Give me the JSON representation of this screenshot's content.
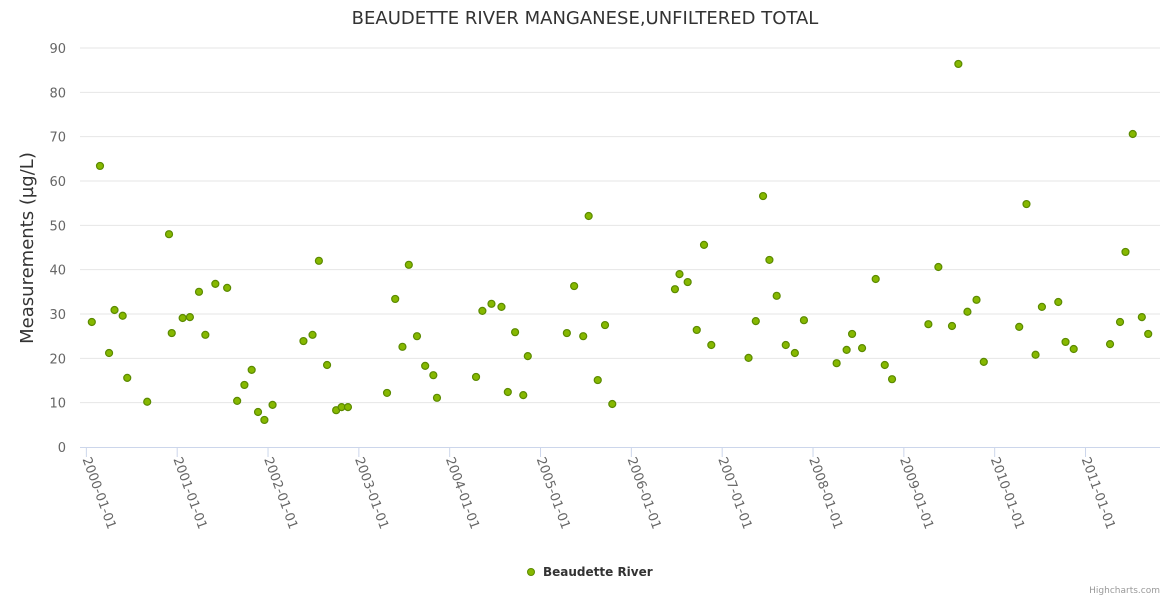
{
  "chart_data": {
    "type": "scatter",
    "title": "BEAUDETTE RIVER MANGANESE,UNFILTERED TOTAL",
    "xlabel": "",
    "ylabel": "Measurements (µg/L)",
    "ylim": [
      0,
      90
    ],
    "xlim": [
      1999.93,
      2011.82
    ],
    "yticks": [
      0,
      10,
      20,
      30,
      40,
      50,
      60,
      70,
      80,
      90
    ],
    "xticks": [
      {
        "value": 2000,
        "label": "2000-01-01"
      },
      {
        "value": 2001,
        "label": "2001-01-01"
      },
      {
        "value": 2002,
        "label": "2002-01-01"
      },
      {
        "value": 2003,
        "label": "2003-01-01"
      },
      {
        "value": 2004,
        "label": "2004-01-01"
      },
      {
        "value": 2005,
        "label": "2005-01-01"
      },
      {
        "value": 2006,
        "label": "2006-01-01"
      },
      {
        "value": 2007,
        "label": "2007-01-01"
      },
      {
        "value": 2008,
        "label": "2008-01-01"
      },
      {
        "value": 2009,
        "label": "2009-01-01"
      },
      {
        "value": 2010,
        "label": "2010-01-01"
      },
      {
        "value": 2011,
        "label": "2011-01-01"
      }
    ],
    "grid": true,
    "legend_position": "bottom-center",
    "series": [
      {
        "name": "Beaudette River",
        "color": "#86b800",
        "stroke": "#5b8a00",
        "x_unit": "decimal year",
        "points": [
          [
            2000.06,
            28.2
          ],
          [
            2000.15,
            63.4
          ],
          [
            2000.25,
            21.2
          ],
          [
            2000.31,
            30.9
          ],
          [
            2000.4,
            29.6
          ],
          [
            2000.45,
            15.6
          ],
          [
            2000.67,
            10.2
          ],
          [
            2000.91,
            48.0
          ],
          [
            2000.94,
            25.7
          ],
          [
            2001.06,
            29.1
          ],
          [
            2001.14,
            29.3
          ],
          [
            2001.24,
            35.0
          ],
          [
            2001.31,
            25.3
          ],
          [
            2001.42,
            36.8
          ],
          [
            2001.55,
            35.9
          ],
          [
            2001.66,
            10.4
          ],
          [
            2001.74,
            14.0
          ],
          [
            2001.82,
            17.4
          ],
          [
            2001.89,
            7.9
          ],
          [
            2001.96,
            6.1
          ],
          [
            2002.05,
            9.5
          ],
          [
            2002.39,
            23.9
          ],
          [
            2002.49,
            25.3
          ],
          [
            2002.56,
            42.0
          ],
          [
            2002.65,
            18.5
          ],
          [
            2002.75,
            8.3
          ],
          [
            2002.81,
            9.0
          ],
          [
            2002.88,
            9.0
          ],
          [
            2003.31,
            12.2
          ],
          [
            2003.4,
            33.4
          ],
          [
            2003.48,
            22.6
          ],
          [
            2003.55,
            41.1
          ],
          [
            2003.64,
            25.0
          ],
          [
            2003.73,
            18.3
          ],
          [
            2003.82,
            16.2
          ],
          [
            2003.86,
            11.1
          ],
          [
            2004.29,
            15.8
          ],
          [
            2004.36,
            30.7
          ],
          [
            2004.46,
            32.3
          ],
          [
            2004.57,
            31.6
          ],
          [
            2004.64,
            12.4
          ],
          [
            2004.72,
            25.9
          ],
          [
            2004.81,
            11.7
          ],
          [
            2004.86,
            20.5
          ],
          [
            2005.29,
            25.7
          ],
          [
            2005.37,
            36.3
          ],
          [
            2005.47,
            25.0
          ],
          [
            2005.53,
            52.1
          ],
          [
            2005.63,
            15.1
          ],
          [
            2005.71,
            27.5
          ],
          [
            2005.79,
            9.7
          ],
          [
            2006.48,
            35.6
          ],
          [
            2006.53,
            39.0
          ],
          [
            2006.62,
            37.2
          ],
          [
            2006.72,
            26.4
          ],
          [
            2006.8,
            45.6
          ],
          [
            2006.88,
            23.0
          ],
          [
            2007.29,
            20.1
          ],
          [
            2007.37,
            28.4
          ],
          [
            2007.45,
            56.6
          ],
          [
            2007.52,
            42.2
          ],
          [
            2007.6,
            34.1
          ],
          [
            2007.7,
            23.0
          ],
          [
            2007.8,
            21.2
          ],
          [
            2007.9,
            28.6
          ],
          [
            2008.26,
            18.9
          ],
          [
            2008.37,
            21.9
          ],
          [
            2008.43,
            25.5
          ],
          [
            2008.54,
            22.3
          ],
          [
            2008.69,
            37.9
          ],
          [
            2008.79,
            18.5
          ],
          [
            2008.87,
            15.3
          ],
          [
            2009.27,
            27.7
          ],
          [
            2009.38,
            40.6
          ],
          [
            2009.53,
            27.3
          ],
          [
            2009.6,
            86.4
          ],
          [
            2009.7,
            30.5
          ],
          [
            2009.8,
            33.2
          ],
          [
            2009.88,
            19.2
          ],
          [
            2010.27,
            27.1
          ],
          [
            2010.35,
            54.8
          ],
          [
            2010.45,
            20.8
          ],
          [
            2010.52,
            31.6
          ],
          [
            2010.7,
            32.7
          ],
          [
            2010.78,
            23.7
          ],
          [
            2010.87,
            22.1
          ],
          [
            2011.27,
            23.2
          ],
          [
            2011.38,
            28.2
          ],
          [
            2011.44,
            44.0
          ],
          [
            2011.52,
            70.6
          ],
          [
            2011.62,
            29.3
          ],
          [
            2011.69,
            25.5
          ]
        ]
      }
    ],
    "credit": "Highcharts.com"
  }
}
